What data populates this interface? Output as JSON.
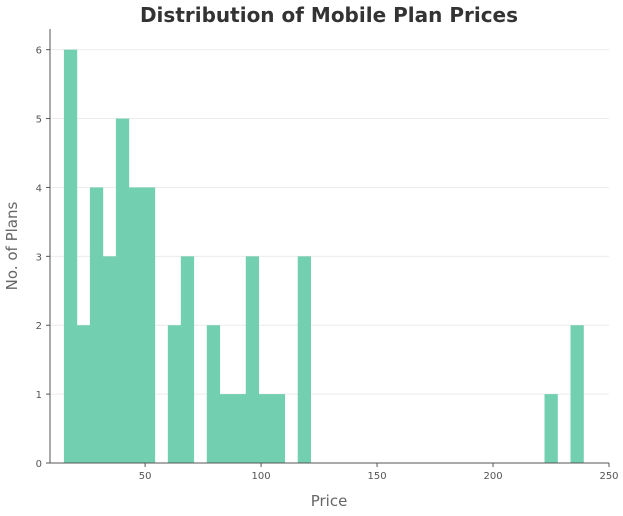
{
  "chart_data": {
    "type": "bar",
    "title": "Distribution of Mobile Plan Prices",
    "xlabel": "Price",
    "ylabel": "No. of Plans",
    "xlim": [
      9,
      250
    ],
    "ylim": [
      0,
      6.3
    ],
    "x_ticks": [
      50,
      100,
      150,
      200,
      250
    ],
    "y_ticks": [
      0,
      1,
      2,
      3,
      4,
      5,
      6
    ],
    "grid": "horizontal",
    "bar_color": "#72cfaf",
    "bin_width": 5.6,
    "bins": [
      {
        "x": 15.0,
        "count": 6
      },
      {
        "x": 20.6,
        "count": 2
      },
      {
        "x": 26.2,
        "count": 4
      },
      {
        "x": 31.8,
        "count": 3
      },
      {
        "x": 37.4,
        "count": 5
      },
      {
        "x": 43.0,
        "count": 4
      },
      {
        "x": 48.6,
        "count": 4
      },
      {
        "x": 54.2,
        "count": 0
      },
      {
        "x": 59.8,
        "count": 2
      },
      {
        "x": 65.4,
        "count": 3
      },
      {
        "x": 71.0,
        "count": 0
      },
      {
        "x": 76.6,
        "count": 2
      },
      {
        "x": 82.2,
        "count": 1
      },
      {
        "x": 87.8,
        "count": 1
      },
      {
        "x": 93.4,
        "count": 3
      },
      {
        "x": 99.0,
        "count": 1
      },
      {
        "x": 104.6,
        "count": 1
      },
      {
        "x": 110.2,
        "count": 0
      },
      {
        "x": 115.8,
        "count": 3
      },
      {
        "x": 222.2,
        "count": 1
      },
      {
        "x": 233.4,
        "count": 2
      }
    ]
  }
}
